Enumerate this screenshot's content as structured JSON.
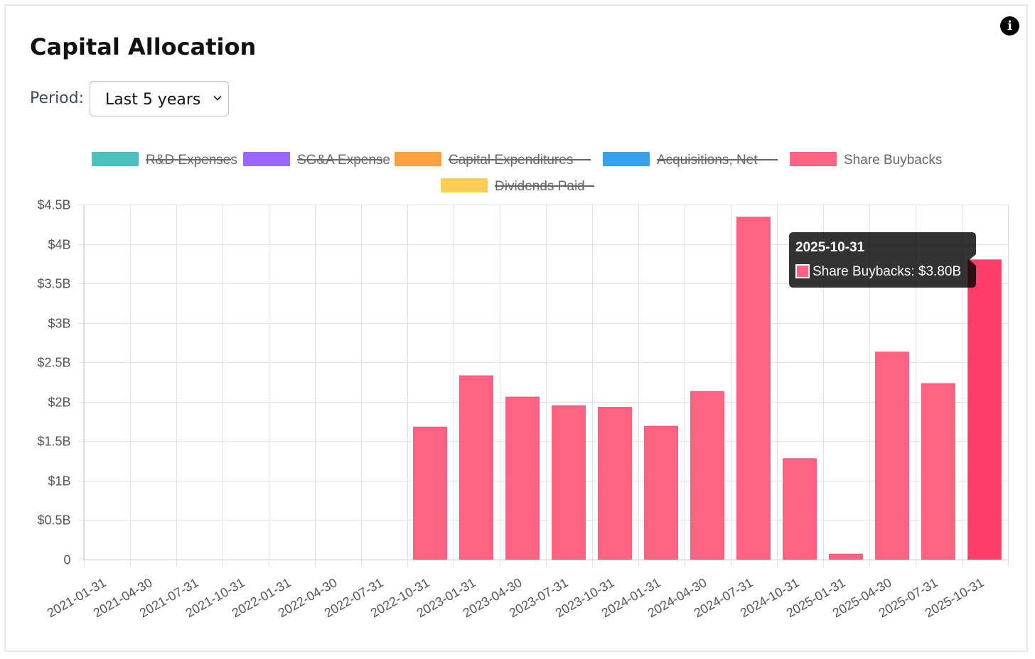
{
  "title": "Capital Allocation",
  "info_icon_glyph": "i",
  "period": {
    "label": "Period:",
    "selected": "Last 5 years"
  },
  "tooltip": {
    "title": "2025-10-31",
    "series": "Share Buybacks",
    "value": "$3.80B",
    "category": "2025-10-31"
  },
  "chart_data": {
    "type": "bar",
    "title": "",
    "xlabel": "",
    "ylabel": "",
    "ylim": [
      0,
      4.5
    ],
    "grid": true,
    "legend_position": "top",
    "y_ticks": [
      {
        "value": 0,
        "label": "0"
      },
      {
        "value": 0.5,
        "label": "$0.5B"
      },
      {
        "value": 1,
        "label": "$1B"
      },
      {
        "value": 1.5,
        "label": "$1.5B"
      },
      {
        "value": 2,
        "label": "$2B"
      },
      {
        "value": 2.5,
        "label": "$2.5B"
      },
      {
        "value": 3,
        "label": "$3B"
      },
      {
        "value": 3.5,
        "label": "$3.5B"
      },
      {
        "value": 4,
        "label": "$4B"
      },
      {
        "value": 4.5,
        "label": "$4.5B"
      }
    ],
    "categories": [
      "2021-01-31",
      "2021-04-30",
      "2021-07-31",
      "2021-10-31",
      "2022-01-31",
      "2022-04-30",
      "2022-07-31",
      "2022-10-31",
      "2023-01-31",
      "2023-04-30",
      "2023-07-31",
      "2023-10-31",
      "2024-01-31",
      "2024-04-30",
      "2024-07-31",
      "2024-10-31",
      "2025-01-31",
      "2025-04-30",
      "2025-07-31",
      "2025-10-31"
    ],
    "legend": [
      {
        "name": "R&D Expenses",
        "color": "#4bc0c0",
        "hidden": true
      },
      {
        "name": "SG&A Expense",
        "color": "#9966ff",
        "hidden": true
      },
      {
        "name": "Capital Expenditures",
        "color": "#ff9f40",
        "hidden": true
      },
      {
        "name": "Acquisitions, Net",
        "color": "#36a2eb",
        "hidden": true
      },
      {
        "name": "Share Buybacks",
        "color": "#ff6384",
        "hidden": false
      },
      {
        "name": "Dividends Paid",
        "color": "#ffcd56",
        "hidden": true
      }
    ],
    "series": [
      {
        "name": "Share Buybacks",
        "color": "#ff6384",
        "highlight_color": "#ff3d6a",
        "values": [
          0,
          0,
          0,
          0,
          0,
          0,
          0,
          1.68,
          2.33,
          2.06,
          1.95,
          1.93,
          1.69,
          2.13,
          4.34,
          1.28,
          0.07,
          2.63,
          2.23,
          3.8
        ]
      }
    ]
  }
}
